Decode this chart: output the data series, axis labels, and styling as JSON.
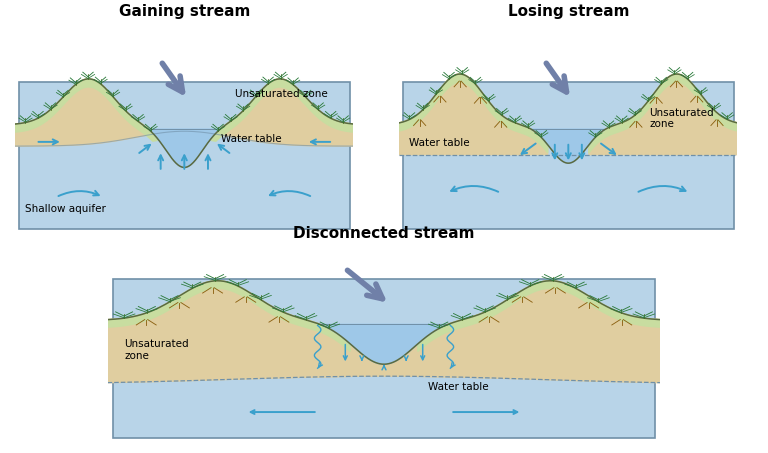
{
  "title1": "Gaining stream",
  "title2": "Losing stream",
  "title3": "Disconnected stream",
  "c_bg": "#ffffff",
  "c_water": "#b8d4e8",
  "c_water2": "#c5ddf0",
  "c_stream": "#9ec8e8",
  "c_sand": "#e0ceA0",
  "c_green": "#c8dda0",
  "c_box_edge": "#7090a8",
  "c_terrain": "#5a6a40",
  "c_flow": "#3aA0cc",
  "c_big_arrow": "#7080a8",
  "c_root": "#8B6010",
  "c_plant_stem": "#4a6a20",
  "c_plant_leaf": "#2a7a3a",
  "c_wt_line": "#7090a8",
  "title_fs": 11,
  "label_fs": 7.5
}
